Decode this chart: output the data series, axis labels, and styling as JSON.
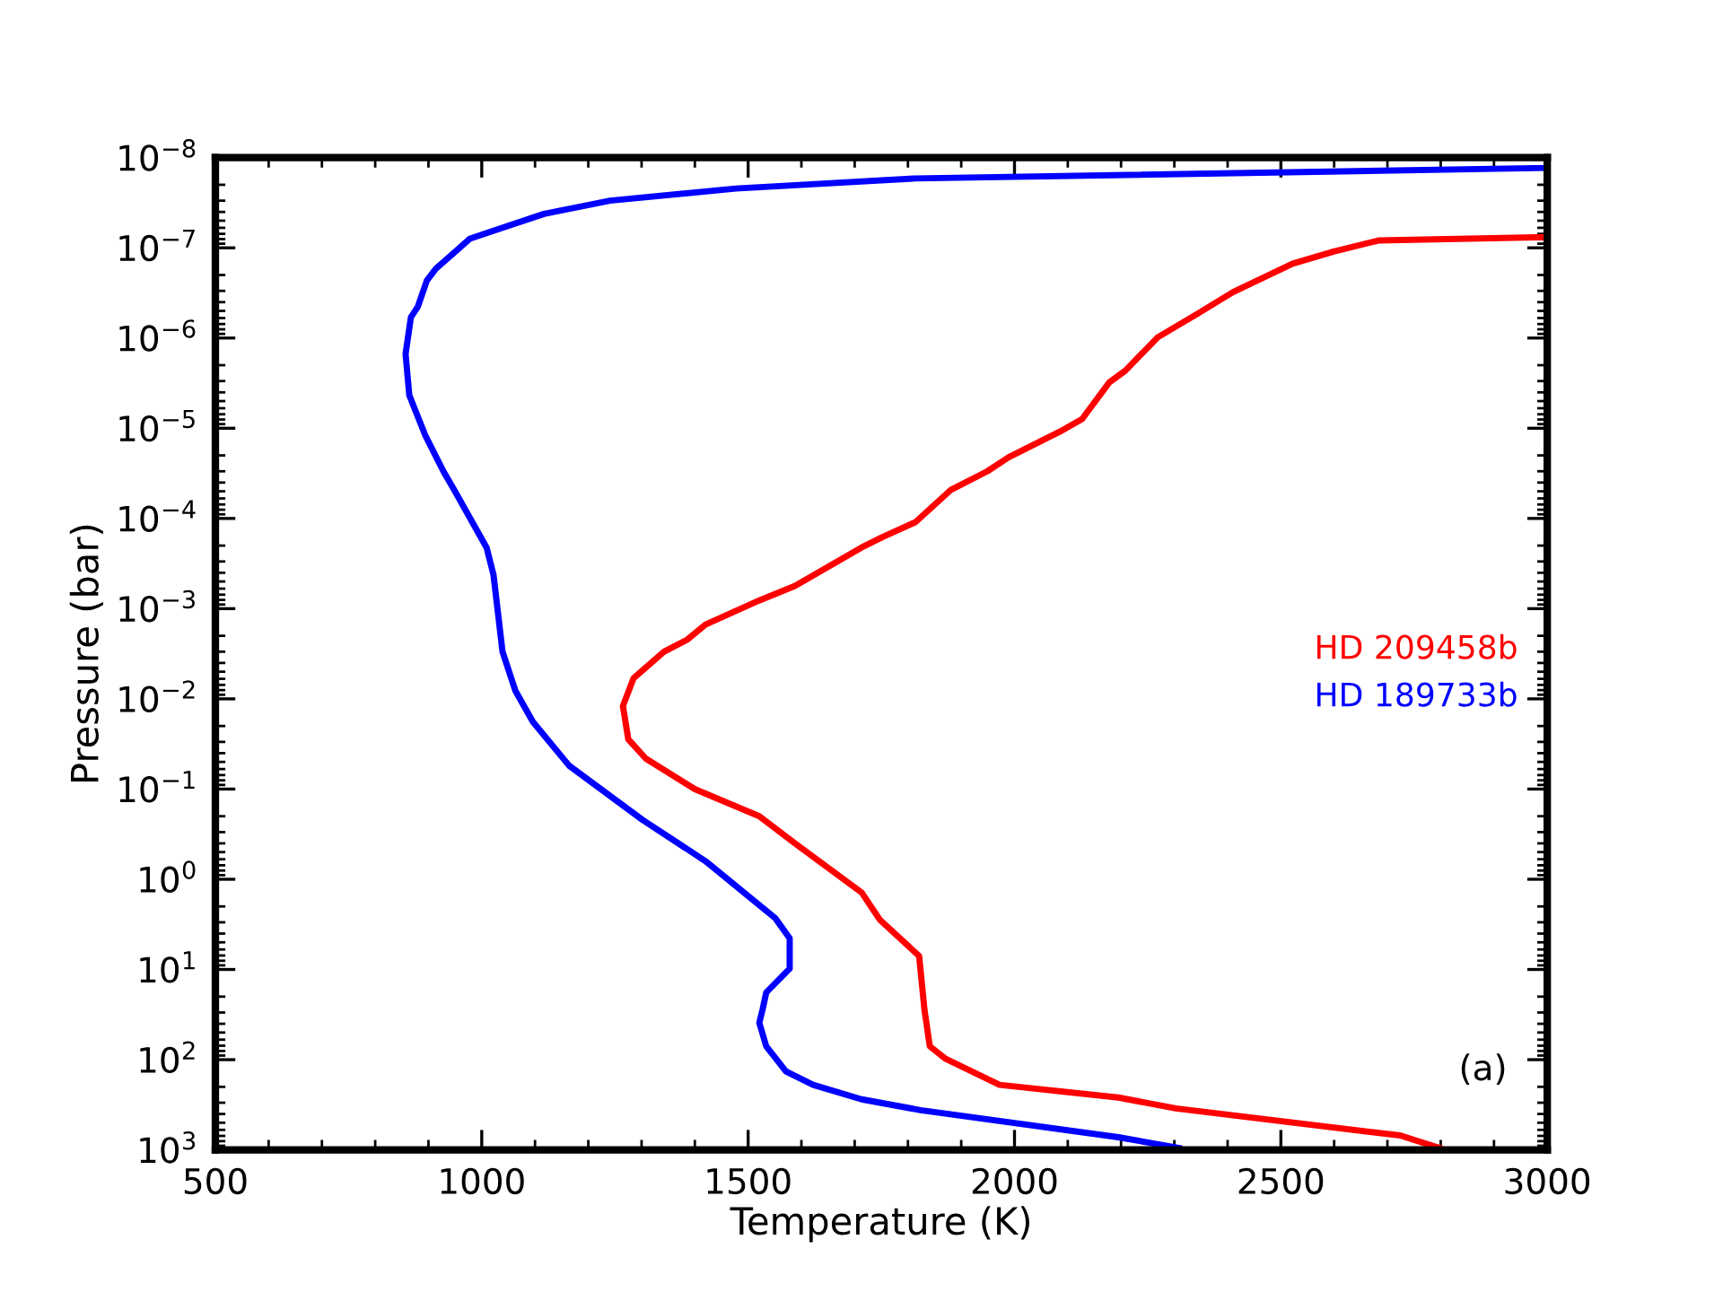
{
  "chart_data": {
    "type": "line",
    "xlabel": "Temperature (K)",
    "ylabel": "Pressure (bar)",
    "xlim": [
      500,
      3000
    ],
    "xticks": [
      500,
      1000,
      1500,
      2000,
      2500,
      3000
    ],
    "ylim": [
      1000,
      1e-08
    ],
    "log": "y",
    "yticks": [
      {
        "value": 1e-08,
        "label": "10$^{−8}$"
      },
      {
        "value": 1e-07,
        "label": "10$^{−7}$"
      },
      {
        "value": 1e-06,
        "label": "10$^{−6}$"
      },
      {
        "value": 1e-05,
        "label": "10$^{−5}$"
      },
      {
        "value": 0.0001,
        "label": "10$^{−4}$"
      },
      {
        "value": 0.001,
        "label": "10$^{−3}$"
      },
      {
        "value": 0.01,
        "label": "10$^{−2}$"
      },
      {
        "value": 0.1,
        "label": "10$^{−1}$"
      },
      {
        "value": 1,
        "label": "10$^{0}$"
      },
      {
        "value": 10,
        "label": "10$^{1}$"
      },
      {
        "value": 100,
        "label": "10$^{2}$"
      },
      {
        "value": 1000,
        "label": "10$^{3}$"
      }
    ],
    "grid": false,
    "legend": "right",
    "marker": "none",
    "line_style": "solid",
    "annotations": [
      "(a)"
    ],
    "series": [
      {
        "name": "HD 209458b",
        "color": "#ff0000",
        "x": [
          3000,
          2683,
          2599,
          2522,
          2410,
          2343,
          2269,
          2208,
          2178,
          2127,
          2084,
          1989,
          1949,
          1881,
          1814,
          1753,
          1713,
          1588,
          1521,
          1420,
          1386,
          1342,
          1285,
          1265,
          1275,
          1308,
          1400,
          1521,
          1588,
          1713,
          1747,
          1821,
          1831,
          1841,
          1871,
          1972,
          2195,
          2303,
          2724,
          2798
        ],
        "values": [
          7.6e-08,
          8.3e-08,
          1.1e-07,
          1.5e-07,
          3.1e-07,
          5.4e-07,
          9.8e-07,
          2.3e-06,
          3.1e-06,
          7.9e-06,
          1.1e-05,
          2.1e-05,
          3e-05,
          4.8e-05,
          0.00011,
          0.00016,
          0.00021,
          0.00056,
          0.00081,
          0.0015,
          0.0022,
          0.003,
          0.0059,
          0.012,
          0.028,
          0.046,
          0.1,
          0.2,
          0.4,
          1.4,
          2.8,
          7.1,
          28,
          71,
          98,
          190,
          263,
          347,
          692,
          955
        ]
      },
      {
        "name": "HD 189733b",
        "color": "#0000ff",
        "x": [
          3000,
          1814,
          1477,
          1241,
          1117,
          978,
          914,
          897,
          880,
          867,
          857,
          864,
          894,
          928,
          948,
          1009,
          1022,
          1039,
          1063,
          1096,
          1164,
          1302,
          1420,
          1551,
          1578,
          1578,
          1534,
          1527,
          1521,
          1534,
          1571,
          1622,
          1713,
          1824,
          2195,
          2309
        ],
        "values": [
          1.3e-08,
          1.7e-08,
          2.2e-08,
          3e-08,
          4.2e-08,
          7.9e-08,
          1.7e-07,
          2.3e-07,
          4.5e-07,
          5.9e-07,
          1.5e-06,
          4.3e-06,
          1.2e-05,
          3e-05,
          4.8e-05,
          0.00021,
          0.00042,
          0.003,
          0.0081,
          0.018,
          0.055,
          0.22,
          0.63,
          2.7,
          4.5,
          9.8,
          18,
          28,
          39,
          71,
          135,
          190,
          275,
          363,
          724,
          955
        ]
      }
    ]
  }
}
